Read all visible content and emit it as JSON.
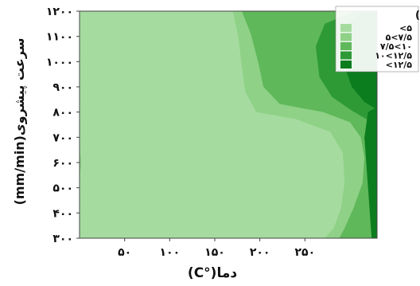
{
  "chart_data": {
    "type": "contour",
    "xlabel": "دما(°C)",
    "ylabel": "سرعت پیشروی(mm/min)",
    "xlim": [
      0,
      300
    ],
    "ylim": [
      300,
      1200
    ],
    "x_ticks": [
      50,
      100,
      150,
      200,
      250
    ],
    "x_tick_labels": [
      "۵۰",
      "۱۰۰",
      "۱۵۰",
      "۲۰۰",
      "۲۵۰"
    ],
    "y_ticks": [
      300,
      400,
      500,
      600,
      700,
      800,
      900,
      1000,
      1100,
      1200
    ],
    "y_tick_labels": [
      "۳۰۰",
      "۴۰۰",
      "۵۰۰",
      "۶۰۰",
      "۷۰۰",
      "۸۰۰",
      "۹۰۰",
      "۱۰۰۰",
      "۱۱۰۰",
      "۱۲۰۰"
    ],
    "legend_title": "عمق(mm)",
    "legend_position": "top-right",
    "levels": [
      {
        "label": "<۵",
        "color": "#a6dba0"
      },
      {
        "label": "۵<۷/۵",
        "color": "#8fd187"
      },
      {
        "label": "۷/۵<۱۰",
        "color": "#5fb85a"
      },
      {
        "label": "۱۰<۱۲/۵",
        "color": "#2e9a36"
      },
      {
        "label": "<۱۲/۵",
        "color": "#0b7d1e"
      }
    ],
    "regions": [
      {
        "level": 0,
        "boundary": [
          [
            0,
            300
          ],
          [
            268,
            300
          ],
          [
            280,
            340
          ],
          [
            288,
            420
          ],
          [
            292,
            520
          ],
          [
            290,
            640
          ],
          [
            276,
            720
          ],
          [
            238,
            770
          ],
          [
            190,
            800
          ],
          [
            178,
            880
          ],
          [
            175,
            980
          ],
          [
            170,
            1100
          ],
          [
            165,
            1200
          ],
          [
            0,
            1200
          ]
        ]
      },
      {
        "level": 1,
        "boundary": [
          [
            0,
            300
          ],
          [
            0,
            560
          ],
          [
            2,
            580
          ],
          [
            4,
            600
          ],
          [
            2,
            620
          ],
          [
            0,
            640
          ],
          [
            0,
            1200
          ],
          [
            0,
            1200
          ],
          [
            0,
            560
          ]
        ]
      },
      {
        "level": 2,
        "boundary": [
          [
            268,
            300
          ],
          [
            330,
            300
          ],
          [
            330,
            1200
          ],
          [
            165,
            1200
          ],
          [
            170,
            1100
          ],
          [
            175,
            980
          ],
          [
            178,
            880
          ],
          [
            190,
            800
          ],
          [
            238,
            770
          ],
          [
            276,
            720
          ],
          [
            290,
            640
          ],
          [
            292,
            520
          ],
          [
            288,
            420
          ],
          [
            280,
            340
          ]
        ]
      },
      {
        "level": 3,
        "boundary": [
          [
            330,
            300
          ],
          [
            330,
            1200
          ],
          [
            300,
            1200
          ],
          [
            272,
            1150
          ],
          [
            262,
            1060
          ],
          [
            268,
            940
          ],
          [
            280,
            860
          ],
          [
            300,
            800
          ],
          [
            322,
            740
          ],
          [
            330,
            720
          ]
        ]
      },
      {
        "level": 4,
        "boundary": [
          [
            330,
            300
          ],
          [
            330,
            1200
          ],
          [
            300,
            1200
          ],
          [
            272,
            1150
          ],
          [
            262,
            1060
          ],
          [
            268,
            940
          ],
          [
            280,
            860
          ],
          [
            300,
            800
          ],
          [
            322,
            740
          ],
          [
            330,
            720
          ]
        ]
      }
    ]
  }
}
